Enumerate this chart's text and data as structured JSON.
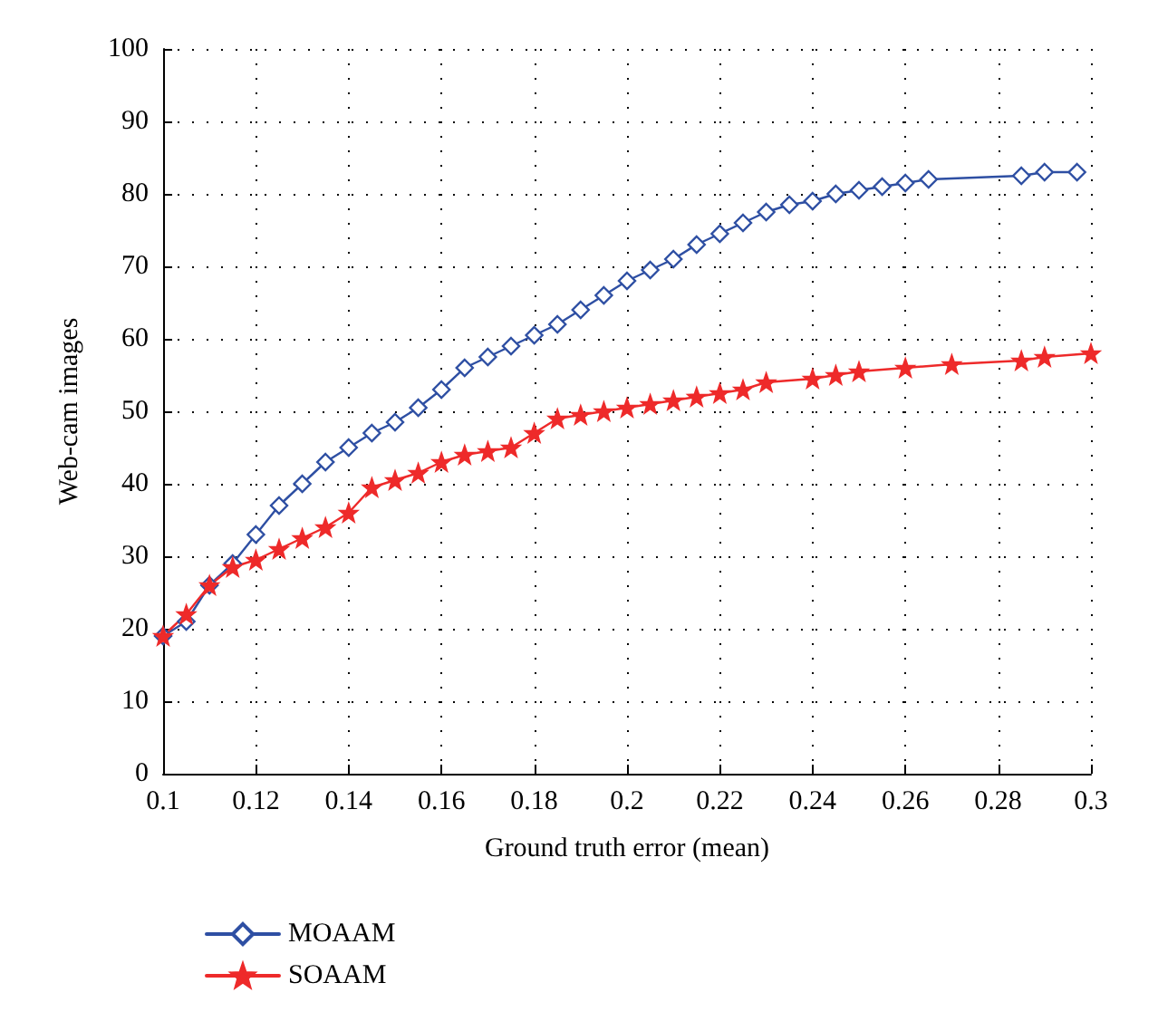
{
  "chart_data": {
    "type": "line",
    "xlabel": "Ground truth error (mean)",
    "ylabel": "Web-cam images",
    "xlim": [
      0.1,
      0.3
    ],
    "xticks": [
      0.1,
      0.12,
      0.14,
      0.16,
      0.18,
      0.2,
      0.22,
      0.24,
      0.26,
      0.28,
      0.3
    ],
    "ylim": [
      0,
      100
    ],
    "yticks": [
      0,
      10,
      20,
      30,
      40,
      50,
      60,
      70,
      80,
      90,
      100
    ],
    "grid": true,
    "legend": "bottom left",
    "series": [
      {
        "name": "MOAAM",
        "color": "#2e4fa3",
        "marker": "diamond",
        "x": [
          0.1,
          0.105,
          0.11,
          0.115,
          0.12,
          0.125,
          0.13,
          0.135,
          0.14,
          0.145,
          0.15,
          0.155,
          0.16,
          0.165,
          0.17,
          0.175,
          0.18,
          0.185,
          0.19,
          0.195,
          0.2,
          0.205,
          0.21,
          0.215,
          0.22,
          0.225,
          0.23,
          0.235,
          0.24,
          0.245,
          0.25,
          0.255,
          0.26,
          0.265,
          0.285,
          0.29,
          0.297
        ],
        "values": [
          19,
          21,
          26,
          29,
          33,
          37,
          40,
          43,
          45,
          47,
          48.5,
          50.5,
          53,
          56,
          57.5,
          59,
          60.5,
          62,
          64,
          66,
          68,
          69.5,
          71,
          73,
          74.5,
          76,
          77.5,
          78.5,
          79,
          80,
          80.5,
          81,
          81.5,
          82,
          82.5,
          83,
          83
        ]
      },
      {
        "name": "SOAAM",
        "color": "#ee2a2a",
        "marker": "star",
        "x": [
          0.1,
          0.105,
          0.11,
          0.115,
          0.12,
          0.125,
          0.13,
          0.135,
          0.14,
          0.145,
          0.15,
          0.155,
          0.16,
          0.165,
          0.17,
          0.175,
          0.18,
          0.185,
          0.19,
          0.195,
          0.2,
          0.205,
          0.21,
          0.215,
          0.22,
          0.225,
          0.23,
          0.24,
          0.245,
          0.25,
          0.26,
          0.27,
          0.285,
          0.29,
          0.3
        ],
        "values": [
          19,
          22,
          26,
          28.5,
          29.5,
          31,
          32.5,
          34,
          36,
          39.5,
          40.5,
          41.5,
          43,
          44,
          44.5,
          45,
          47,
          49,
          49.5,
          50,
          50.5,
          51,
          51.5,
          52,
          52.5,
          53,
          54,
          54.5,
          55,
          55.5,
          56,
          56.5,
          57,
          57.5,
          58
        ]
      }
    ]
  }
}
